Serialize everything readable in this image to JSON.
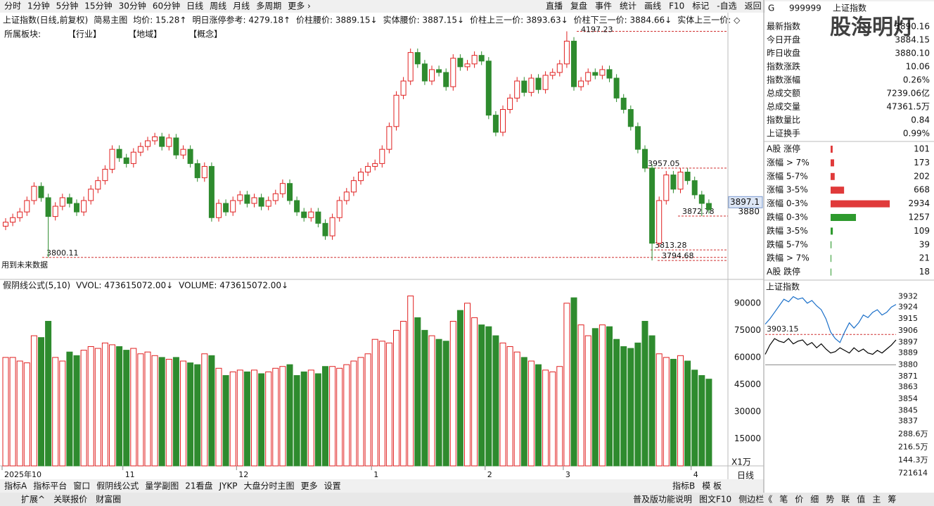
{
  "toolbar": {
    "left": [
      "分时",
      "1分钟",
      "5分钟",
      "15分钟",
      "30分钟",
      "60分钟",
      "日线",
      "周线",
      "月线",
      "多周期",
      "更多 ›"
    ],
    "right": [
      "直播",
      "复盘",
      "事件",
      "统计",
      "画线",
      "F10",
      "标记",
      "-自选",
      "返回"
    ]
  },
  "info": {
    "items": [
      "上证指数(日线,前复权)",
      "简易主图",
      "均价: 15.28↑",
      "明日涨停参考: 4279.18↑",
      "价柱腰价: 3889.15↓",
      "实体腰价: 3887.15↓",
      "价柱上三一价: 3893.63↓",
      "价柱下三一价: 3884.66↓",
      "实体上三一价: ◇"
    ],
    "sector": [
      "所属板块:",
      "【行业】",
      "【地域】",
      "【概念】"
    ],
    "note": "用到未来数据"
  },
  "volume_header": [
    "假阴线公式(5,10)",
    "VVOL: 473615072.00↓",
    "VOLUME: 473615072.00↓"
  ],
  "bottom_tabs": {
    "left": [
      "指标A",
      "指标平台",
      "窗口",
      "假阴线公式",
      "量学副图",
      "21看盘",
      "JYKP",
      "大盘分时主图",
      "更多",
      "设置"
    ],
    "right": [
      "指标B",
      "模 板"
    ],
    "period": "日线"
  },
  "status_bar": {
    "left": [
      "扩展^",
      "关联报价",
      "财富圈"
    ],
    "right": [
      "普及版功能说明",
      "图文F10",
      "侧边栏《",
      "笔",
      "价",
      "细",
      "势",
      "联",
      "值",
      "主",
      "筹"
    ]
  },
  "quote_header": {
    "mark": "G",
    "code": "999999",
    "name": "上证指数",
    "watermark": "股海明灯"
  },
  "quotes": [
    {
      "label": "最新指数",
      "value": "3890.16",
      "color": "#e02020"
    },
    {
      "label": "今日开盘",
      "value": "3884.15",
      "color": "#e02020"
    },
    {
      "label": "昨日收盘",
      "value": "3880.10",
      "color": "#000000"
    },
    {
      "label": "指数涨跌",
      "value": "10.06",
      "color": "#e02020"
    },
    {
      "label": "指数涨幅",
      "value": "0.26%",
      "color": "#e02020"
    },
    {
      "label": "总成交额",
      "value": "7239.06亿",
      "color": "#000000"
    },
    {
      "label": "总成交量",
      "value": "47361.5万",
      "color": "#000000"
    },
    {
      "label": "指数量比",
      "value": "0.84",
      "color": "#2a8a2a"
    },
    {
      "label": "上证换手",
      "value": "0.99%",
      "color": "#000000"
    }
  ],
  "chart_data": [
    {
      "type": "candlestick",
      "up_color": "#e02020",
      "down_color": "#2e8b2e",
      "categories": [
        "2025年10",
        null,
        null,
        null,
        null,
        null,
        null,
        null,
        null,
        null,
        null,
        null,
        null,
        null,
        null,
        null,
        null,
        "11",
        null,
        null,
        null,
        null,
        null,
        null,
        null,
        null,
        null,
        null,
        null,
        null,
        null,
        null,
        null,
        "12",
        null,
        null,
        null,
        null,
        null,
        null,
        null,
        null,
        null,
        null,
        null,
        null,
        null,
        null,
        null,
        null,
        null,
        null,
        "1",
        null,
        null,
        null,
        null,
        null,
        null,
        null,
        null,
        null,
        null,
        null,
        null,
        null,
        null,
        null,
        "2",
        null,
        null,
        null,
        null,
        null,
        null,
        null,
        null,
        null,
        null,
        "3",
        null,
        null,
        null,
        null,
        null,
        null,
        null,
        null,
        null,
        null,
        null,
        null,
        null,
        null,
        null,
        null,
        null,
        "4",
        null,
        null
      ],
      "open": [
        3855,
        3862,
        3870,
        3880,
        3900,
        3925,
        3905,
        3872,
        3890,
        3905,
        3895,
        3880,
        3900,
        3920,
        3935,
        3955,
        3990,
        3975,
        3965,
        3985,
        3995,
        4005,
        4012,
        3995,
        4010,
        3980,
        3990,
        3965,
        3940,
        3960,
        3870,
        3895,
        3880,
        3900,
        3910,
        3895,
        3905,
        3890,
        3900,
        3912,
        3930,
        3900,
        3880,
        3870,
        3880,
        3860,
        3838,
        3870,
        3900,
        3915,
        3935,
        3950,
        3960,
        3965,
        3990,
        4030,
        4085,
        4110,
        4160,
        4140,
        4110,
        4130,
        4125,
        4100,
        4150,
        4135,
        4140,
        4155,
        4145,
        4050,
        4020,
        4060,
        4080,
        4110,
        4090,
        4115,
        4095,
        4120,
        4125,
        4140,
        4180,
        4100,
        4110,
        4125,
        4120,
        4130,
        4115,
        4080,
        4060,
        4030,
        3990,
        3957,
        3825,
        3900,
        3945,
        3920,
        3950,
        3935,
        3910,
        3895
      ],
      "close": [
        3862,
        3870,
        3880,
        3900,
        3925,
        3905,
        3872,
        3890,
        3905,
        3895,
        3880,
        3900,
        3920,
        3935,
        3955,
        3990,
        3975,
        3965,
        3985,
        3995,
        4005,
        4012,
        3995,
        4010,
        3980,
        3990,
        3965,
        3940,
        3960,
        3870,
        3895,
        3880,
        3900,
        3910,
        3895,
        3905,
        3890,
        3900,
        3912,
        3930,
        3900,
        3880,
        3870,
        3880,
        3860,
        3838,
        3870,
        3900,
        3915,
        3935,
        3950,
        3960,
        3965,
        3990,
        4030,
        4085,
        4110,
        4160,
        4140,
        4110,
        4130,
        4125,
        4100,
        4150,
        4135,
        4140,
        4155,
        4145,
        4050,
        4020,
        4060,
        4080,
        4110,
        4090,
        4115,
        4095,
        4120,
        4125,
        4140,
        4180,
        4100,
        4110,
        4125,
        4120,
        4130,
        4115,
        4080,
        4060,
        4030,
        3990,
        3957,
        3825,
        3900,
        3945,
        3920,
        3950,
        3935,
        3910,
        3895,
        3884
      ],
      "high": [
        3869,
        3877,
        3887,
        3907,
        3932,
        3932,
        3912,
        3897,
        3912,
        3912,
        3902,
        3907,
        3927,
        3942,
        3962,
        3997,
        3997,
        3982,
        3992,
        4002,
        4012,
        4019,
        4019,
        4017,
        4017,
        3997,
        3997,
        3972,
        3967,
        3967,
        3902,
        3902,
        3907,
        3917,
        3917,
        3912,
        3912,
        3907,
        3919,
        3937,
        3937,
        3907,
        3887,
        3887,
        3887,
        3867,
        3877,
        3907,
        3922,
        3942,
        3957,
        3967,
        3972,
        3997,
        4037,
        4092,
        4117,
        4167,
        4167,
        4147,
        4137,
        4137,
        4132,
        4157,
        4157,
        4147,
        4162,
        4162,
        4152,
        4057,
        4067,
        4087,
        4117,
        4117,
        4122,
        4122,
        4127,
        4132,
        4147,
        4197.23,
        4187,
        4117,
        4132,
        4132,
        4137,
        4137,
        4122,
        4087,
        4067,
        4037,
        3997,
        3964,
        3907,
        3952,
        3952,
        3957,
        3957,
        3942,
        3917,
        3902
      ],
      "low": [
        3848,
        3855,
        3863,
        3873,
        3893,
        3898,
        3800.11,
        3865,
        3883,
        3888,
        3873,
        3873,
        3893,
        3913,
        3928,
        3948,
        3968,
        3958,
        3958,
        3978,
        3988,
        3998,
        3988,
        3988,
        3973,
        3973,
        3958,
        3933,
        3933,
        3863,
        3863,
        3873,
        3873,
        3893,
        3888,
        3888,
        3883,
        3883,
        3893,
        3905,
        3893,
        3873,
        3863,
        3863,
        3853,
        3831,
        3831,
        3863,
        3893,
        3908,
        3928,
        3943,
        3953,
        3958,
        3983,
        4023,
        4078,
        4103,
        4133,
        4103,
        4103,
        4118,
        4093,
        4093,
        4128,
        4128,
        4133,
        4138,
        4043,
        4013,
        4013,
        4053,
        4073,
        4083,
        4083,
        4088,
        4088,
        4113,
        4118,
        4133,
        4093,
        4093,
        4103,
        4113,
        4113,
        4108,
        4073,
        4053,
        4023,
        3983,
        3950,
        3794.68,
        3818,
        3893,
        3913,
        3913,
        3928,
        3903,
        3872.78,
        3877
      ],
      "ylim": [
        3764,
        4230
      ],
      "yticks": [
        3880
      ],
      "cursor_value": 3897.1,
      "price_marks": [
        4197.23,
        3957.05,
        3872.78,
        3813.28,
        3800.11,
        3794.68
      ]
    },
    {
      "type": "bar",
      "up_color": "#e02020",
      "down_color": "#2e8b2e",
      "unit_label": "X1万",
      "values": [
        60000,
        60000,
        58000,
        57000,
        72000,
        71000,
        80000,
        60000,
        58000,
        63000,
        61000,
        64000,
        66000,
        65000,
        68000,
        67000,
        66000,
        64000,
        65000,
        62000,
        63000,
        61000,
        60000,
        59000,
        60000,
        58000,
        57000,
        56000,
        62000,
        61000,
        54000,
        50000,
        52000,
        53000,
        52000,
        53000,
        51000,
        52000,
        54000,
        55000,
        56000,
        50000,
        52000,
        53000,
        51000,
        55000,
        55000,
        54000,
        56000,
        58000,
        60000,
        62000,
        70000,
        69000,
        68000,
        75000,
        80000,
        94000,
        82000,
        75000,
        72000,
        70000,
        69000,
        80000,
        86000,
        90000,
        82000,
        78000,
        77000,
        72000,
        68000,
        66000,
        63000,
        60000,
        58000,
        56000,
        53000,
        52000,
        55000,
        90000,
        93000,
        78000,
        72000,
        76000,
        78000,
        77000,
        70000,
        66000,
        65000,
        68000,
        80000,
        72000,
        62000,
        60000,
        59000,
        61000,
        58000,
        53000,
        50000,
        48000
      ],
      "ylim": [
        0,
        102000
      ],
      "yticks": [
        15000,
        30000,
        45000,
        60000,
        75000,
        90000
      ]
    },
    {
      "type": "hbar",
      "categories": [
        "A股 涨停",
        "涨幅 > 7%",
        "涨幅 5-7%",
        "涨幅 3-5%",
        "涨幅 0-3%",
        "跌幅 0-3%",
        "跌幅 3-5%",
        "跌幅 5-7%",
        "跌幅 > 7%",
        "A股 跌停"
      ],
      "values": [
        101,
        173,
        202,
        668,
        2934,
        1257,
        109,
        39,
        21,
        18
      ],
      "colors": [
        "#e03a3a",
        "#e03a3a",
        "#e03a3a",
        "#e03a3a",
        "#e03a3a",
        "#2e9a2e",
        "#2e9a2e",
        "#2e9a2e",
        "#2e9a2e",
        "#2e9a2e"
      ],
      "xlim": [
        0,
        3000
      ]
    },
    {
      "type": "line",
      "title": "上证指数",
      "series": [
        {
          "color": "#1a6fc9",
          "values": [
            3911,
            3915,
            3920,
            3925,
            3930,
            3928,
            3932,
            3930,
            3931,
            3927,
            3929,
            3925,
            3922,
            3915,
            3905,
            3900,
            3897,
            3905,
            3912,
            3908,
            3912,
            3918,
            3916,
            3920,
            3922,
            3918,
            3920,
            3924,
            3926
          ]
        },
        {
          "color": "#000000",
          "values": [
            3888,
            3895,
            3900,
            3898,
            3897,
            3900,
            3896,
            3898,
            3899,
            3895,
            3897,
            3893,
            3896,
            3892,
            3889,
            3890,
            3893,
            3891,
            3889,
            3893,
            3890,
            3892,
            3889,
            3888,
            3891,
            3889,
            3892,
            3895,
            3899
          ]
        }
      ],
      "ylim": [
        3833,
        3936
      ],
      "yticks": [
        3932,
        3924,
        3915,
        3906,
        3897,
        3889,
        3880,
        3871,
        3863,
        3854,
        3845,
        3837
      ],
      "base_value": 3880,
      "marked_value": 3903.15,
      "volume_ticks": [
        "288.6万",
        "216.5万",
        "144.3万",
        "721614"
      ]
    }
  ]
}
